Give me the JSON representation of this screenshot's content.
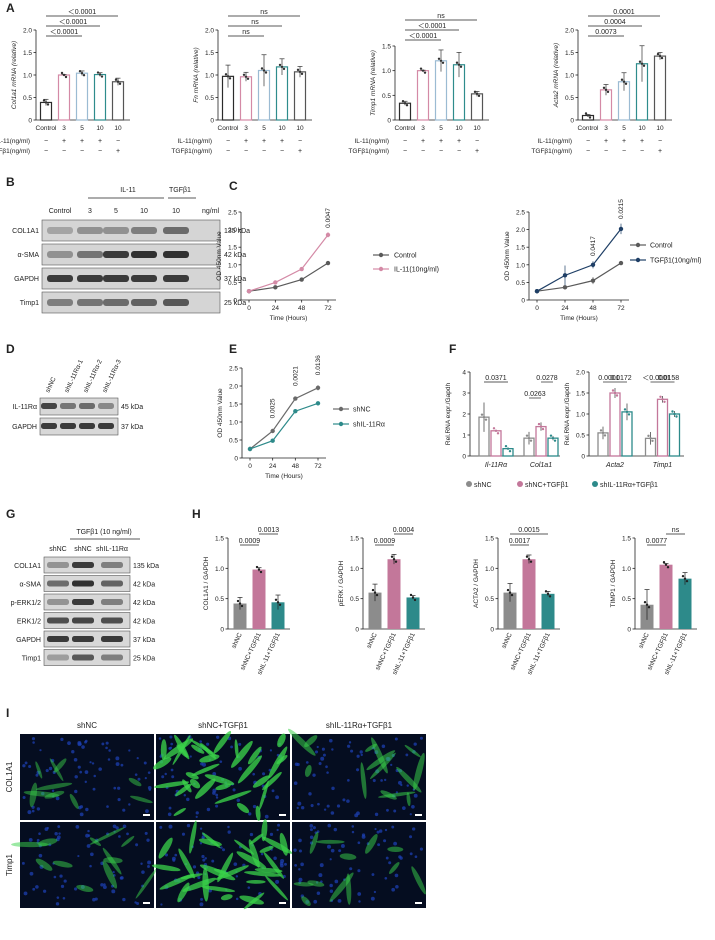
{
  "panel_letters": {
    "A": "A",
    "B": "B",
    "C": "C",
    "D": "D",
    "E": "E",
    "F": "F",
    "G": "G",
    "H": "H",
    "I": "I"
  },
  "colors": {
    "control": "#2b2b2b",
    "il11": "#d48aa6",
    "il11_light": "#e6aebf",
    "il11_mid": "#a9c8dc",
    "il11_high": "#2e8c8c",
    "tgf": "#6b6b6b",
    "tgf_dark": "#1f3f66",
    "shnc": "#8c8c8c",
    "shnc_tgf": "#c3779a",
    "shil_tgf": "#2d8a8a",
    "green_stain": "#3ad34a",
    "dapi": "#1c3fb0"
  },
  "panel_a": {
    "treat_row1": "IL-11(ng/ml)",
    "treat_row2": "TGFβ1(ng/ml)",
    "ticks": [
      "Control",
      "3",
      "5",
      "10",
      "10"
    ],
    "row1_marks": [
      "−",
      "+",
      "+",
      "+",
      "−"
    ],
    "row2_marks": [
      "−",
      "−",
      "−",
      "−",
      "+"
    ],
    "charts": [
      {
        "ylabel": "Col1a1 mRNA (relative)",
        "yticks": [
          "0",
          "0.5",
          "1.0",
          "1.5",
          "2.0"
        ],
        "values": [
          0.39,
          1.0,
          1.04,
          1.01,
          0.85
        ],
        "errors": [
          0.07,
          0.01,
          0.05,
          0.04,
          0.08
        ],
        "sig": [
          {
            "label": "＜0.0001",
            "from": 0,
            "to": 4,
            "lvl": 3
          },
          {
            "label": "＜0.0001",
            "from": 0,
            "to": 3,
            "lvl": 2
          },
          {
            "label": "＜0.0001",
            "from": 0,
            "to": 2,
            "lvl": 1
          }
        ]
      },
      {
        "ylabel": "Fn mRNA (relative)",
        "yticks": [
          "0",
          "0.5",
          "1.0",
          "1.5",
          "2.0"
        ],
        "values": [
          0.97,
          0.96,
          1.1,
          1.18,
          1.07
        ],
        "errors": [
          0.25,
          0.1,
          0.35,
          0.18,
          0.12
        ],
        "sig": [
          {
            "label": "ns",
            "from": 0,
            "to": 4,
            "lvl": 3
          },
          {
            "label": "ns",
            "from": 0,
            "to": 3,
            "lvl": 2
          },
          {
            "label": "ns",
            "from": 0,
            "to": 2,
            "lvl": 1
          }
        ]
      },
      {
        "ylabel": "Timp1 mRNA (relative)",
        "yticks": [
          "0",
          "0.5",
          "1.0",
          "1.5"
        ],
        "values": [
          0.34,
          1.0,
          1.2,
          1.12,
          0.53
        ],
        "errors": [
          0.04,
          0.01,
          0.22,
          0.25,
          0.05
        ],
        "sig": [
          {
            "label": "ns",
            "from": 0,
            "to": 4,
            "lvl": 3
          },
          {
            "label": "＜0.0001",
            "from": 0,
            "to": 3,
            "lvl": 2
          },
          {
            "label": "＜0.0001",
            "from": 0,
            "to": 2,
            "lvl": 1
          }
        ]
      },
      {
        "ylabel": "Acta2 mRNA (relative)",
        "yticks": [
          "0",
          "0.5",
          "1.0",
          "1.5",
          "2.0"
        ],
        "values": [
          0.1,
          0.67,
          0.85,
          1.25,
          1.42
        ],
        "errors": [
          0.02,
          0.12,
          0.2,
          0.4,
          0.08
        ],
        "sig": [
          {
            "label": "0.0001",
            "from": 0,
            "to": 4,
            "lvl": 3
          },
          {
            "label": "0.0004",
            "from": 0,
            "to": 3,
            "lvl": 2
          },
          {
            "label": "0.0073",
            "from": 0,
            "to": 2,
            "lvl": 1
          }
        ]
      }
    ]
  },
  "panel_b": {
    "group_il11": "IL-11",
    "group_tgf": "TGFβ1",
    "unit": "ng/ml",
    "lanes": [
      "Control",
      "3",
      "5",
      "10",
      "10"
    ],
    "rows": [
      {
        "name": "COL1A1",
        "kda": "135 kDa"
      },
      {
        "name": "α-SMA",
        "kda": "42 kDa"
      },
      {
        "name": "GAPDH",
        "kda": "37 kDa"
      },
      {
        "name": "Timp1",
        "kda": "25 kDa"
      }
    ]
  },
  "panel_c": {
    "ylabel": "OD 450nm Value",
    "xlabel": "Time (Hours)",
    "yticks": [
      "0",
      "0.5",
      "1.0",
      "1.5",
      "2.0",
      "2.5"
    ],
    "xticks": [
      "0",
      "24",
      "48",
      "72"
    ],
    "left": {
      "legend": [
        "Control",
        "IL-11(10ng/ml)"
      ],
      "p": [
        "0.0047"
      ],
      "series": [
        [
          0.25,
          0.36,
          0.58,
          1.05
        ],
        [
          0.25,
          0.5,
          0.88,
          1.85
        ]
      ],
      "err": [
        [
          0.02,
          0.02,
          0.03,
          0.03
        ],
        [
          0.02,
          0.03,
          0.05,
          0.07
        ]
      ]
    },
    "right": {
      "legend": [
        "Control",
        "TGFβ1(10ng/ml)"
      ],
      "p": [
        "0.0417",
        "0.0215"
      ],
      "series": [
        [
          0.25,
          0.36,
          0.55,
          1.05
        ],
        [
          0.25,
          0.7,
          1.0,
          2.02
        ]
      ],
      "err": [
        [
          0.02,
          0.03,
          0.1,
          0.03
        ],
        [
          0.02,
          0.28,
          0.1,
          0.15
        ]
      ]
    }
  },
  "panel_d": {
    "lanes": [
      "shNC",
      "shIL-11Rα-1",
      "shIL-11Rα-2",
      "shIL-11Rα-3"
    ],
    "rows": [
      {
        "name": "IL-11Rα",
        "kda": "45 kDa"
      },
      {
        "name": "GAPDH",
        "kda": "37 kDa"
      }
    ]
  },
  "panel_e": {
    "ylabel": "OD 450nm Value",
    "xlabel": "Time (Hours)",
    "yticks": [
      "0",
      "0.5",
      "1.0",
      "1.5",
      "2.0",
      "2.5"
    ],
    "xticks": [
      "0",
      "24",
      "48",
      "72"
    ],
    "legend": [
      "shNC",
      "shIL-11Rα"
    ],
    "p": [
      "0.0025",
      "0.0021",
      "0.0136"
    ],
    "series": [
      [
        0.25,
        0.75,
        1.65,
        1.95
      ],
      [
        0.25,
        0.48,
        1.3,
        1.52
      ]
    ],
    "err": [
      [
        0.02,
        0.03,
        0.04,
        0.07
      ],
      [
        0.02,
        0.03,
        0.05,
        0.04
      ]
    ]
  },
  "panel_f": {
    "ylabel": "Rel.RNA expr./Gapdh",
    "left": {
      "yticks": [
        "0",
        "1",
        "2",
        "3",
        "4"
      ],
      "genes": [
        "Il-11Rα",
        "Col1a1"
      ],
      "values": [
        [
          1.85,
          1.2,
          0.35
        ],
        [
          0.85,
          1.4,
          0.85
        ]
      ],
      "errors": [
        [
          0.7,
          0.05,
          0.05
        ],
        [
          0.3,
          0.2,
          0.1
        ]
      ],
      "sig": [
        {
          "label": "0.0371",
          "g": 0,
          "from": 0,
          "to": 2
        },
        {
          "label": "0.0278",
          "g": 1,
          "from": 1,
          "to": 2
        },
        {
          "label": "0.0263",
          "g": 1,
          "from": 0,
          "to": 1
        }
      ]
    },
    "right": {
      "yticks": [
        "0",
        "0.5",
        "1.0",
        "1.5",
        "2.0"
      ],
      "genes": [
        "Acta2",
        "Timp1"
      ],
      "values": [
        [
          0.55,
          1.5,
          1.05
        ],
        [
          0.42,
          1.35,
          1.0
        ]
      ],
      "errors": [
        [
          0.15,
          0.12,
          0.2
        ],
        [
          0.15,
          0.08,
          0.07
        ]
      ],
      "sig": [
        {
          "label": "0.0001",
          "g": 0,
          "from": 0,
          "to": 1
        },
        {
          "label": "0.0172",
          "g": 0,
          "from": 1,
          "to": 2
        },
        {
          "label": "＜0.0001",
          "g": 1,
          "from": 0,
          "to": 1
        },
        {
          "label": "0.0158",
          "g": 1,
          "from": 1,
          "to": 2
        }
      ]
    },
    "legend": [
      "shNC",
      "shNC+TGFβ1",
      "shIL-11Rα+TGFβ1"
    ]
  },
  "panel_g": {
    "title": "TGFβ1 (10 ng/ml)",
    "lanes": [
      "shNC",
      "shNC",
      "shIL-11Rα"
    ],
    "rows": [
      {
        "name": "COL1A1",
        "kda": "135 kDa"
      },
      {
        "name": "α-SMA",
        "kda": "42 kDa"
      },
      {
        "name": "p-ERK1/2",
        "kda": "42 kDa"
      },
      {
        "name": "ERK1/2",
        "kda": "42 kDa"
      },
      {
        "name": "GAPDH",
        "kda": "37 kDa"
      },
      {
        "name": "Timp1",
        "kda": "25 kDa"
      }
    ]
  },
  "panel_h": {
    "ticks": [
      "shNC",
      "shNC+TGFβ1",
      "shIL-11+TGFβ1"
    ],
    "charts": [
      {
        "ylabel": "COL1A1 / GAPDH",
        "yticks": [
          "0",
          "0.5",
          "1.0",
          "1.5"
        ],
        "values": [
          0.42,
          0.98,
          0.44
        ],
        "errors": [
          0.1,
          0.03,
          0.12
        ],
        "sig": [
          {
            "label": "0.0009",
            "from": 0,
            "to": 1,
            "lvl": 1
          },
          {
            "label": "0.0013",
            "from": 1,
            "to": 2,
            "lvl": 2
          }
        ]
      },
      {
        "ylabel": "pERK / GAPDH",
        "yticks": [
          "0",
          "0.5",
          "1.0",
          "1.5"
        ],
        "values": [
          0.6,
          1.15,
          0.52
        ],
        "errors": [
          0.14,
          0.08,
          0.03
        ],
        "sig": [
          {
            "label": "0.0009",
            "from": 0,
            "to": 1,
            "lvl": 1
          },
          {
            "label": "0.0004",
            "from": 1,
            "to": 2,
            "lvl": 2
          }
        ]
      },
      {
        "ylabel": "ACTA2 / GAPDH",
        "yticks": [
          "0",
          "0.5",
          "1.0",
          "1.5"
        ],
        "values": [
          0.6,
          1.15,
          0.58
        ],
        "errors": [
          0.15,
          0.07,
          0.04
        ],
        "sig": [
          {
            "label": "0.0017",
            "from": 0,
            "to": 1,
            "lvl": 1
          },
          {
            "label": "0.0015",
            "from": 0,
            "to": 2,
            "lvl": 2
          }
        ]
      },
      {
        "ylabel": "TIMP1 / GAPDH",
        "yticks": [
          "0",
          "0.5",
          "1.0",
          "1.5"
        ],
        "values": [
          0.4,
          1.06,
          0.83
        ],
        "errors": [
          0.25,
          0.02,
          0.1
        ],
        "sig": [
          {
            "label": "0.0077",
            "from": 0,
            "to": 1,
            "lvl": 1
          },
          {
            "label": "ns",
            "from": 1,
            "to": 2,
            "lvl": 2
          }
        ]
      }
    ]
  },
  "panel_i": {
    "cols": [
      "shNC",
      "shNC+TGFβ1",
      "shIL-11Rα+TGFβ1"
    ],
    "rows": [
      "COL1A1",
      "Timp1"
    ],
    "green_level": [
      [
        0.25,
        0.85,
        0.35
      ],
      [
        0.3,
        0.8,
        0.3
      ]
    ]
  }
}
